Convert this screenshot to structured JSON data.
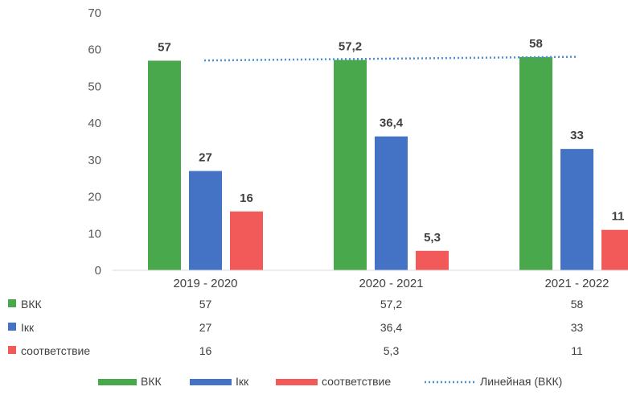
{
  "chart_data": {
    "type": "bar",
    "categories": [
      "2019 - 2020",
      "2020 - 2021",
      "2021 - 2022"
    ],
    "series": [
      {
        "name": "ВКК",
        "values": [
          57,
          57.2,
          58
        ],
        "labels": [
          "57",
          "57,2",
          "58"
        ],
        "color": "#4aa84c"
      },
      {
        "name": "Iкк",
        "values": [
          27,
          36.4,
          33
        ],
        "labels": [
          "27",
          "36,4",
          "33"
        ],
        "color": "#4472c4"
      },
      {
        "name": "соответствие",
        "values": [
          16,
          5.3,
          11
        ],
        "labels": [
          "16",
          "5,3",
          "11"
        ],
        "color": "#f25a5a"
      }
    ],
    "trendline": {
      "name": "Линейная (ВКК)",
      "series": "ВКК",
      "values": [
        56.95,
        57.45,
        57.95
      ],
      "color": "#4a90d9",
      "style": "dotted"
    },
    "ylim": [
      0,
      70
    ],
    "yticks": [
      0,
      10,
      20,
      30,
      40,
      50,
      60,
      70
    ],
    "grid": false,
    "legend_position": "bottom",
    "data_table": true
  }
}
